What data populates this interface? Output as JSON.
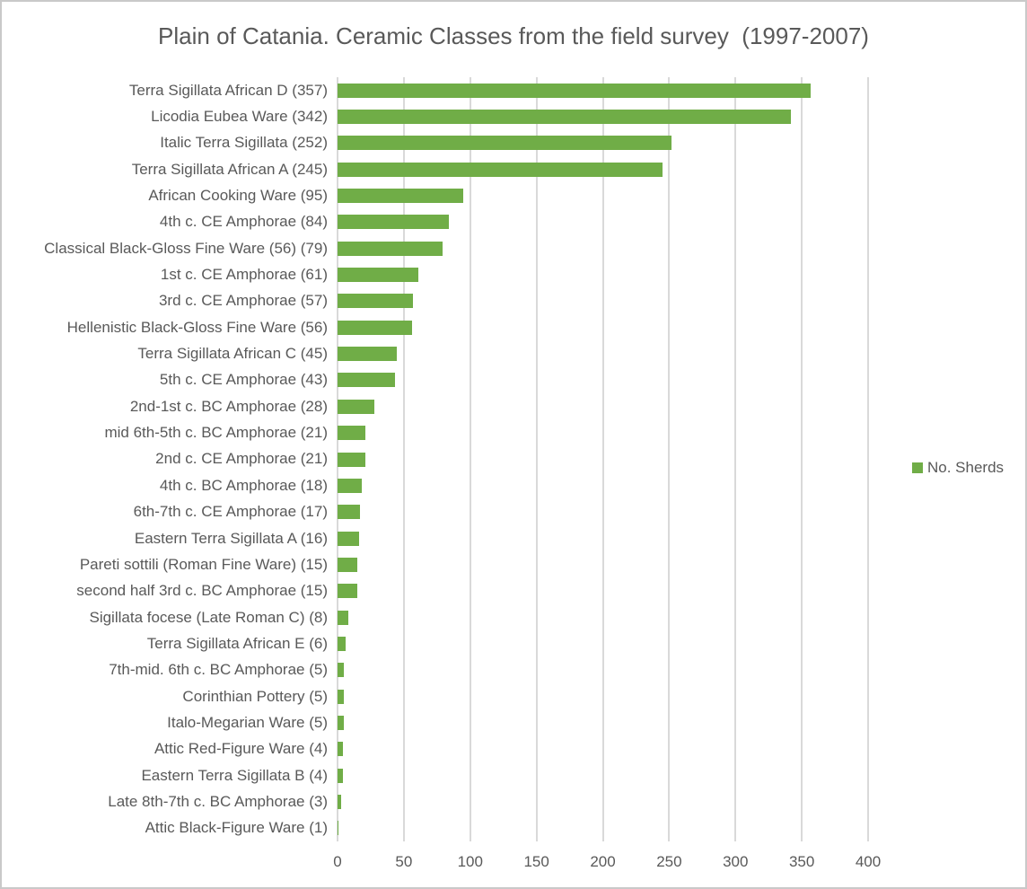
{
  "frame": {
    "background": "#ffffff",
    "border_color": "#c9c9c9"
  },
  "chart_data": {
    "type": "bar",
    "orientation": "horizontal",
    "title": "Plain of Catania. Ceramic Classes from the field survey  (1997-2007)",
    "xlabel": "",
    "ylabel": "",
    "xlim": [
      0,
      400
    ],
    "xticks": [
      0,
      50,
      100,
      150,
      200,
      250,
      300,
      350,
      400
    ],
    "grid": true,
    "gridline_color": "#D9D9D9",
    "text_color": "#595959",
    "bar_color": "#70AD47",
    "legend_position": "right-middle",
    "legend": [
      {
        "label": "No. Sherds",
        "color": "#70AD47"
      }
    ],
    "categories": [
      "Terra Sigillata African D (357)",
      "Licodia Eubea Ware (342)",
      "Italic Terra Sigillata (252)",
      "Terra Sigillata African A (245)",
      "African Cooking Ware (95)",
      "4th c. CE Amphorae (84)",
      "Classical Black-Gloss Fine Ware (56) (79)",
      "1st c. CE Amphorae (61)",
      "3rd c. CE Amphorae (57)",
      "Hellenistic Black-Gloss Fine Ware (56)",
      "Terra Sigillata African C (45)",
      "5th c. CE Amphorae (43)",
      "2nd-1st c. BC Amphorae (28)",
      "mid 6th-5th c. BC Amphorae (21)",
      "2nd c. CE Amphorae (21)",
      "4th c. BC Amphorae (18)",
      "6th-7th c. CE Amphorae (17)",
      "Eastern Terra Sigillata A (16)",
      "Pareti sottili (Roman Fine Ware) (15)",
      "second half 3rd c. BC Amphorae (15)",
      "Sigillata focese (Late Roman C) (8)",
      "Terra Sigillata African E (6)",
      "7th-mid. 6th c. BC Amphorae (5)",
      "Corinthian Pottery (5)",
      "Italo-Megarian Ware (5)",
      "Attic Red-Figure Ware (4)",
      "Eastern Terra Sigillata B (4)",
      "Late 8th-7th c. BC Amphorae (3)",
      "Attic Black-Figure Ware (1)"
    ],
    "values": [
      357,
      342,
      252,
      245,
      95,
      84,
      79,
      61,
      57,
      56,
      45,
      43,
      28,
      21,
      21,
      18,
      17,
      16,
      15,
      15,
      8,
      6,
      5,
      5,
      5,
      4,
      4,
      3,
      1
    ]
  }
}
